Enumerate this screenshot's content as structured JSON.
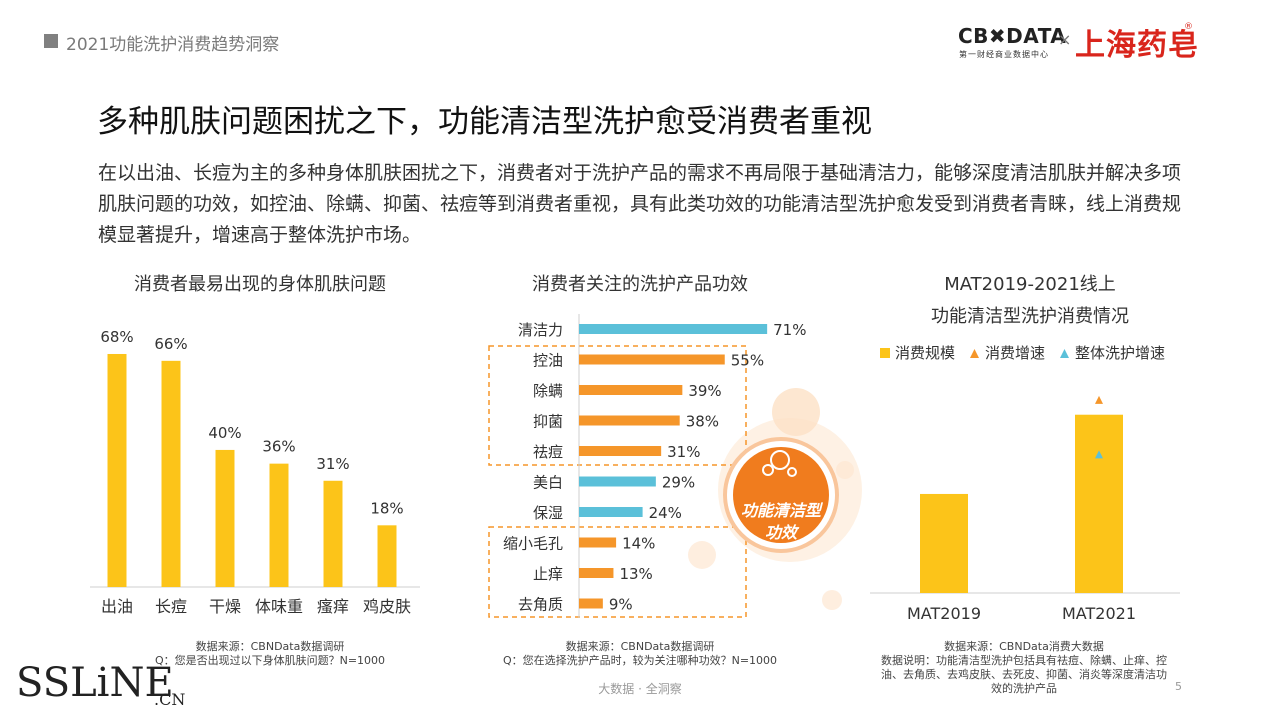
{
  "header": {
    "report_title": "2021功能洗护消费趋势洞察"
  },
  "logos": {
    "cbn": "CB✖DATA",
    "cbn_sub": "第一财经商业数据中心",
    "cross": "×",
    "partner": "上海药皂",
    "registered": "®"
  },
  "slide": {
    "title": "多种肌肤问题困扰之下，功能清洁型洗护愈受消费者重视",
    "lead": "在以出油、长痘为主的多种身体肌肤困扰之下，消费者对于洗护产品的需求不再局限于基础清洁力，能够深度清洁肌肤并解决多项肌肤问题的功效，如控油、除螨、抑菌、祛痘等到消费者重视，具有此类功效的功能清洁型洗护愈发受到消费者青睐，线上消费规模显著提升，增速高于整体洗护市场。"
  },
  "colors": {
    "yellow": "#fcc419",
    "orange": "#f5962a",
    "blue": "#5bc0d9",
    "badge": "#f07c1e"
  },
  "chart_data": [
    {
      "type": "bar",
      "title": "消费者最易出现的身体肌肤问题",
      "categories": [
        "出油",
        "长痘",
        "干燥",
        "体味重",
        "瘙痒",
        "鸡皮肤"
      ],
      "values": [
        68,
        66,
        40,
        36,
        31,
        18
      ],
      "value_labels": [
        "68%",
        "66%",
        "40%",
        "36%",
        "31%",
        "18%"
      ],
      "unit": "%",
      "ylim": [
        0,
        75
      ],
      "grid": false,
      "source": "数据来源：CBNData数据调研",
      "question": "Q：您是否出现过以下身体肌肤问题？N=1000"
    },
    {
      "type": "bar",
      "orientation": "horizontal",
      "title": "消费者关注的洗护产品功效",
      "categories": [
        "清洁力",
        "控油",
        "除螨",
        "抑菌",
        "祛痘",
        "美白",
        "保湿",
        "缩小毛孔",
        "止痒",
        "去角质"
      ],
      "values": [
        71,
        55,
        39,
        38,
        31,
        29,
        24,
        14,
        13,
        9
      ],
      "value_labels": [
        "71%",
        "55%",
        "39%",
        "38%",
        "31%",
        "29%",
        "24%",
        "14%",
        "13%",
        "9%"
      ],
      "highlight": [
        false,
        true,
        true,
        true,
        true,
        false,
        false,
        true,
        true,
        true
      ],
      "unit": "%",
      "xlim": [
        0,
        80
      ],
      "grid": false,
      "badge": "功能清洁型\n功效",
      "badge_lines": [
        "功能清洁型",
        "功效"
      ],
      "source": "数据来源：CBNData数据调研",
      "question": "Q：您在选择洗护产品时，较为关注哪种功效？N=1000"
    },
    {
      "type": "bar",
      "title_lines": [
        "MAT2019-2021线上",
        "功能清洁型洗护消费情况"
      ],
      "categories": [
        "MAT2019",
        "MAT2021"
      ],
      "series": [
        {
          "name": "消费规模",
          "kind": "bar",
          "values": [
            1.0,
            1.8
          ]
        },
        {
          "name": "消费增速",
          "kind": "marker",
          "values": [
            null,
            1.95
          ]
        },
        {
          "name": "整体洗护增速",
          "kind": "marker",
          "values": [
            null,
            1.4
          ]
        }
      ],
      "ylim": [
        0,
        2.1
      ],
      "legend": "top",
      "grid": false,
      "source": "数据来源：CBNData消费大数据",
      "note_lines": [
        "数据说明：功能清洁型洗护包括具有祛痘、除螨、止痒、控",
        "油、去角质、去鸡皮肤、去死皮、抑菌、消炎等深度清洁功",
        "效的洗护产品"
      ]
    }
  ],
  "footer": {
    "text": "大数据 · 全洞察",
    "page": "5"
  },
  "watermark": {
    "main": "SSLiNE",
    "suffix": ".CN"
  }
}
